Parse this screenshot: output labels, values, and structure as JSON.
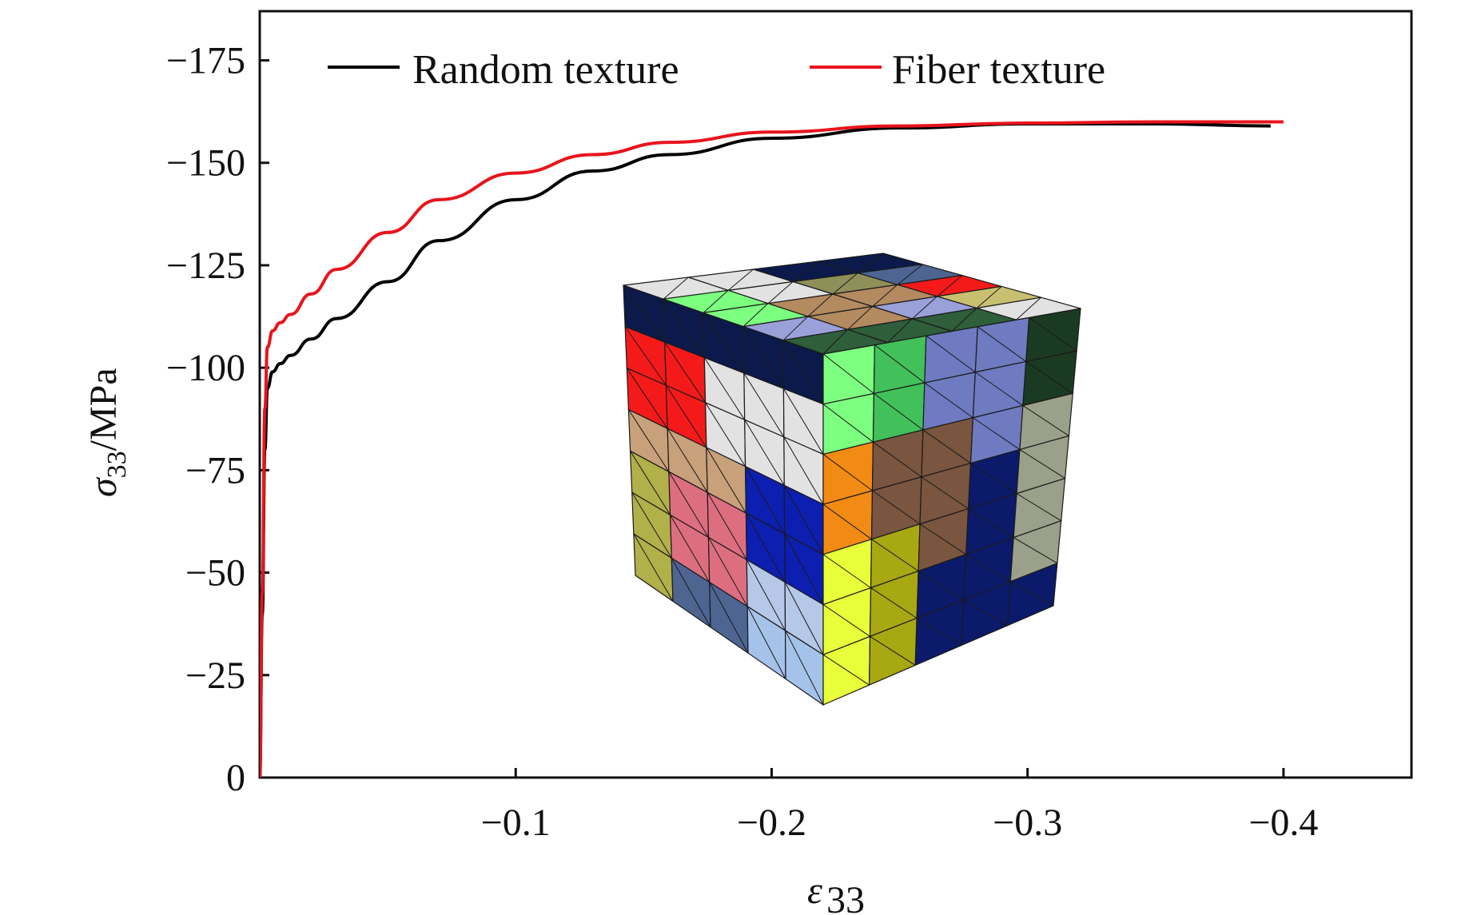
{
  "chart_data": {
    "type": "line",
    "title": "",
    "xlabel": "ε33",
    "ylabel": "σ33/MPa",
    "xlim": [
      0,
      -0.45
    ],
    "ylim": [
      0,
      -187
    ],
    "x_ticks": [
      -0.1,
      -0.2,
      -0.3,
      -0.4
    ],
    "x_tick_labels": [
      "−0.1",
      "−0.2",
      "−0.3",
      "−0.4"
    ],
    "y_ticks": [
      0,
      -25,
      -50,
      -75,
      -100,
      -125,
      -150,
      -175
    ],
    "y_tick_labels": [
      "0",
      "−25",
      "−50",
      "−75",
      "−100",
      "−125",
      "−150",
      "−175"
    ],
    "grid": false,
    "legend_position": "top",
    "series": [
      {
        "name": "Random texture",
        "color": "#000000",
        "x": [
          0,
          -0.001,
          -0.002,
          -0.003,
          -0.005,
          -0.008,
          -0.012,
          -0.02,
          -0.03,
          -0.05,
          -0.07,
          -0.1,
          -0.13,
          -0.16,
          -0.2,
          -0.25,
          -0.3,
          -0.35,
          -0.395
        ],
        "y": [
          0,
          -40,
          -80,
          -95,
          -99,
          -101,
          -103,
          -107,
          -112,
          -121,
          -131,
          -141,
          -148,
          -152,
          -156,
          -158.5,
          -159.5,
          -159.5,
          -159
        ]
      },
      {
        "name": "Fiber texture",
        "color": "#e8141c",
        "x": [
          0,
          -0.001,
          -0.002,
          -0.003,
          -0.005,
          -0.008,
          -0.012,
          -0.02,
          -0.03,
          -0.05,
          -0.07,
          -0.1,
          -0.13,
          -0.16,
          -0.2,
          -0.25,
          -0.3,
          -0.35,
          -0.4
        ],
        "y": [
          0,
          -45,
          -90,
          -105,
          -109,
          -111,
          -113,
          -118,
          -124,
          -133,
          -141,
          -147.5,
          -152,
          -155,
          -157.5,
          -159,
          -159.7,
          -160,
          -160
        ]
      }
    ]
  },
  "inset": {
    "description_icon": "polycrystal-mesh-cube-icon",
    "left_face_colors": [
      [
        "#0b1a4a",
        "#0b1a4a",
        "#0b1a4a",
        "#0b1a4a",
        "#0b1a4a"
      ],
      [
        "#f51a1a",
        "#f51a1a",
        "#e2e2e2",
        "#e2e2e2",
        "#e2e2e2"
      ],
      [
        "#f51a1a",
        "#f51a1a",
        "#e2e2e2",
        "#e2e2e2",
        "#e2e2e2"
      ],
      [
        "#c8a07a",
        "#c8a07a",
        "#c8a07a",
        "#0c1fb0",
        "#0c1fb0"
      ],
      [
        "#b1b04a",
        "#dd6e80",
        "#dd6e80",
        "#0c1fb0",
        "#0c1fb0"
      ],
      [
        "#b1b04a",
        "#dd6e80",
        "#dd6e80",
        "#b5c8e8",
        "#b5c8e8"
      ],
      [
        "#b1b04a",
        "#4e6592",
        "#4e6592",
        "#a5c3ea",
        "#a5c3ea"
      ]
    ],
    "right_face_colors": [
      [
        "#7dff80",
        "#42c05a",
        "#6e7bc0",
        "#6e7bc0",
        "#1b3a22"
      ],
      [
        "#7dff80",
        "#42c05a",
        "#6e7bc0",
        "#6e7bc0",
        "#1b3a22"
      ],
      [
        "#f28b13",
        "#7a5540",
        "#7a5540",
        "#6e7bc0",
        "#9aa08a"
      ],
      [
        "#f28b13",
        "#7a5540",
        "#7a5540",
        "#0b1a6a",
        "#9aa08a"
      ],
      [
        "#e8ff3a",
        "#a8a812",
        "#7a5540",
        "#0b1a6a",
        "#9aa08a"
      ],
      [
        "#e8ff3a",
        "#a8a812",
        "#0b1a6a",
        "#0b1a6a",
        "#9aa08a"
      ],
      [
        "#e8ff3a",
        "#a8a812",
        "#0b1a6a",
        "#0b1a6a",
        "#0b1a6a"
      ]
    ],
    "top_face_colors": [
      [
        "#0b1a4a",
        "#4e6592",
        "#f51a1a",
        "#c8c070",
        "#e2e2e2"
      ],
      [
        "#0b1a4a",
        "#8f8f5a",
        "#b48a60",
        "#9aa0d8",
        "#2f5e3a"
      ],
      [
        "#e2e2e2",
        "#e2e2e2",
        "#b48a60",
        "#b48a60",
        "#2f5e3a"
      ],
      [
        "#e2e2e2",
        "#7dff80",
        "#7dff80",
        "#9aa0d8",
        "#2f5e3a"
      ]
    ]
  }
}
